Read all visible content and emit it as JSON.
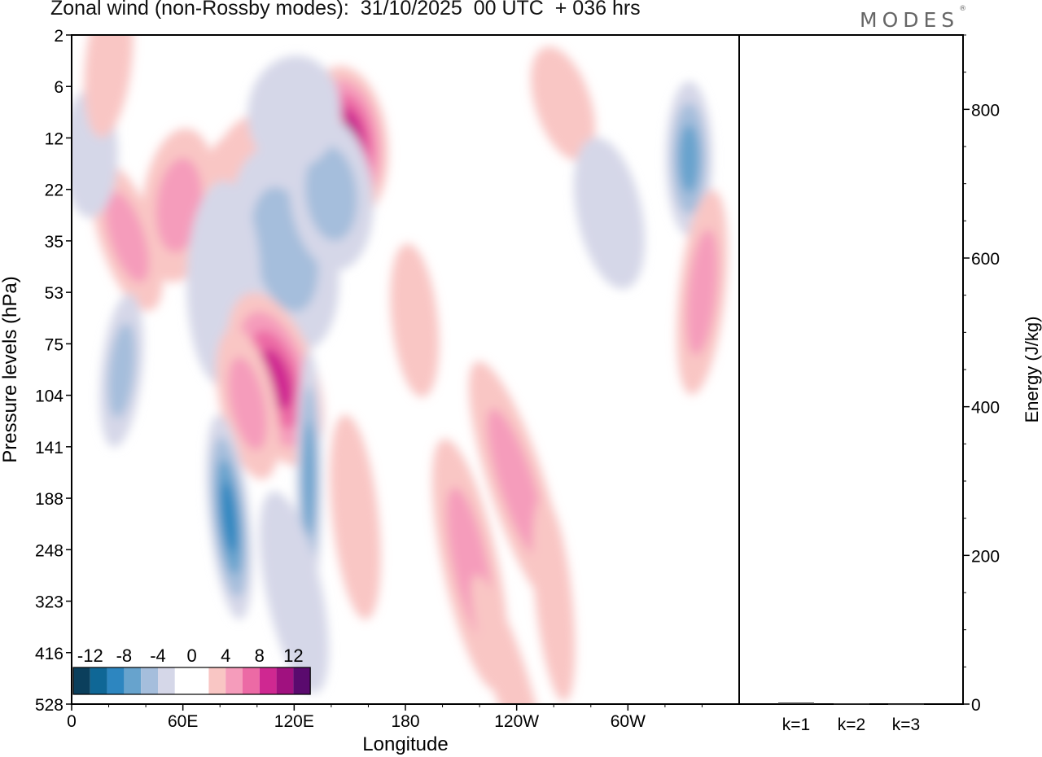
{
  "title": "Zonal wind (non-Rossby modes):  31/10/2025  00 UTC  + 036 hrs",
  "brand": "MODES",
  "brand_mark": "®",
  "chart_data": [
    {
      "type": "heatmap",
      "variable": "Zonal wind (non-Rossby modes)",
      "xlabel": "Longitude",
      "ylabel": "Pressure levels (hPa)",
      "x_ticks": [
        "0",
        "60E",
        "120E",
        "180",
        "120W",
        "60W"
      ],
      "x_tick_degrees": [
        0,
        60,
        120,
        180,
        240,
        300
      ],
      "xlim": [
        0,
        360
      ],
      "y_ticks": [
        "2",
        "6",
        "12",
        "22",
        "35",
        "53",
        "75",
        "104",
        "141",
        "188",
        "248",
        "323",
        "416",
        "528"
      ],
      "colorbar": {
        "tick_labels": [
          "-12",
          "-8",
          "-4",
          "0",
          "4",
          "8",
          "12"
        ],
        "colors": [
          "#0b3f5c",
          "#0f6796",
          "#2d86c0",
          "#67a3cd",
          "#a5bedc",
          "#d5d7e8",
          "#ffffff",
          "#ffffff",
          "#f9c6c4",
          "#f59cbb",
          "#ec6aa5",
          "#cf2891",
          "#a0117f",
          "#5a0a6e"
        ]
      },
      "features": [
        {
          "cx": 100,
          "level": 30,
          "width": 55,
          "depth": 3.5,
          "value": 4
        },
        {
          "cx": 110,
          "level": 25,
          "width": 70,
          "depth": 3.5,
          "value": 3
        },
        {
          "cx": 148,
          "level": 13,
          "width": 45,
          "depth": 3,
          "value": 10
        },
        {
          "cx": 132,
          "level": 13,
          "width": 30,
          "depth": 2.5,
          "value": 6
        },
        {
          "cx": 58,
          "level": 26,
          "width": 40,
          "depth": 3,
          "value": 5
        },
        {
          "cx": 30,
          "level": 34,
          "width": 30,
          "depth": 3,
          "value": 4
        },
        {
          "cx": 115,
          "level": 38,
          "width": 55,
          "depth": 4,
          "value": -5
        },
        {
          "cx": 140,
          "level": 23,
          "width": 45,
          "depth": 3,
          "value": -5
        },
        {
          "cx": 82,
          "level": 50,
          "width": 40,
          "depth": 4,
          "value": -3
        },
        {
          "cx": 120,
          "level": 9,
          "width": 50,
          "depth": 2.2,
          "value": -3
        },
        {
          "cx": 110,
          "level": 95,
          "width": 45,
          "depth": 3.5,
          "value": 8
        },
        {
          "cx": 95,
          "level": 110,
          "width": 30,
          "depth": 3,
          "value": 5
        },
        {
          "cx": 85,
          "level": 210,
          "width": 22,
          "depth": 4,
          "value": -9
        },
        {
          "cx": 128,
          "level": 170,
          "width": 14,
          "depth": 5,
          "value": -6
        },
        {
          "cx": 27,
          "level": 90,
          "width": 22,
          "depth": 3,
          "value": -4
        },
        {
          "cx": 240,
          "level": 175,
          "width": 30,
          "depth": 5,
          "value": 5
        },
        {
          "cx": 215,
          "level": 270,
          "width": 30,
          "depth": 5,
          "value": 4
        },
        {
          "cx": 153,
          "level": 210,
          "width": 25,
          "depth": 4,
          "value": 3
        },
        {
          "cx": 333,
          "level": 16,
          "width": 25,
          "depth": 3,
          "value": -7
        },
        {
          "cx": 340,
          "level": 53,
          "width": 25,
          "depth": 4,
          "value": 4
        },
        {
          "cx": 265,
          "level": 8,
          "width": 30,
          "depth": 2.3,
          "value": 3
        },
        {
          "cx": 290,
          "level": 28,
          "width": 35,
          "depth": 3,
          "value": -2
        },
        {
          "cx": 185,
          "level": 65,
          "width": 25,
          "depth": 3,
          "value": 3
        },
        {
          "cx": 10,
          "level": 15,
          "width": 30,
          "depth": 2.5,
          "value": -2
        },
        {
          "cx": 20,
          "level": 4,
          "width": 25,
          "depth": 3,
          "value": 3
        },
        {
          "cx": 235,
          "level": 460,
          "width": 20,
          "depth": 4,
          "value": 3
        },
        {
          "cx": 120,
          "level": 310,
          "width": 30,
          "depth": 4,
          "value": -3
        },
        {
          "cx": 260,
          "level": 320,
          "width": 20,
          "depth": 4,
          "value": 3
        }
      ]
    },
    {
      "type": "bar",
      "ylabel": "Energy (J/kg)",
      "categories": [
        "k=1",
        "k=2",
        "k=3"
      ],
      "values": [
        2,
        1,
        0.5
      ],
      "ylim": [
        0,
        900
      ],
      "y_ticks": [
        0,
        200,
        400,
        600,
        800
      ]
    }
  ]
}
